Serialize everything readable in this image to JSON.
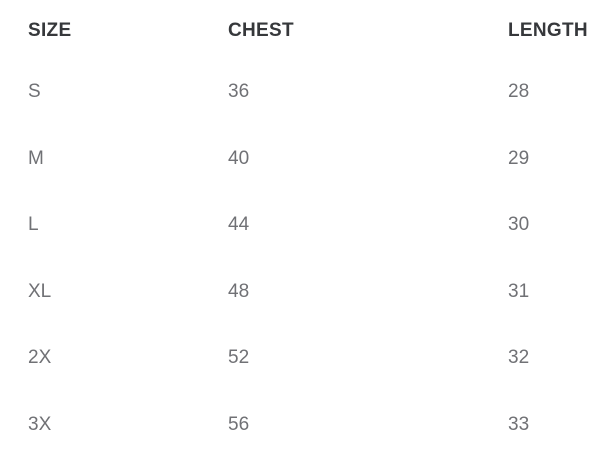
{
  "size_chart": {
    "columns": [
      {
        "label": "SIZE"
      },
      {
        "label": "CHEST"
      },
      {
        "label": "LENGTH"
      }
    ],
    "rows": [
      {
        "size": "S",
        "chest": "36",
        "length": "28"
      },
      {
        "size": "M",
        "chest": "40",
        "length": "29"
      },
      {
        "size": "L",
        "chest": "44",
        "length": "30"
      },
      {
        "size": "XL",
        "chest": "48",
        "length": "31"
      },
      {
        "size": "2X",
        "chest": "52",
        "length": "32"
      },
      {
        "size": "3X",
        "chest": "56",
        "length": "33"
      }
    ],
    "colors": {
      "background": "#ffffff",
      "header_text": "#36383b",
      "body_text": "#707175"
    }
  },
  "chart_data": {
    "type": "table",
    "title": "",
    "categories": [
      "SIZE",
      "CHEST",
      "LENGTH"
    ],
    "series": [
      {
        "name": "CHEST",
        "x": [
          "S",
          "M",
          "L",
          "XL",
          "2X",
          "3X"
        ],
        "values": [
          36,
          40,
          44,
          48,
          52,
          56
        ]
      },
      {
        "name": "LENGTH",
        "x": [
          "S",
          "M",
          "L",
          "XL",
          "2X",
          "3X"
        ],
        "values": [
          28,
          29,
          30,
          31,
          32,
          33
        ]
      }
    ]
  }
}
